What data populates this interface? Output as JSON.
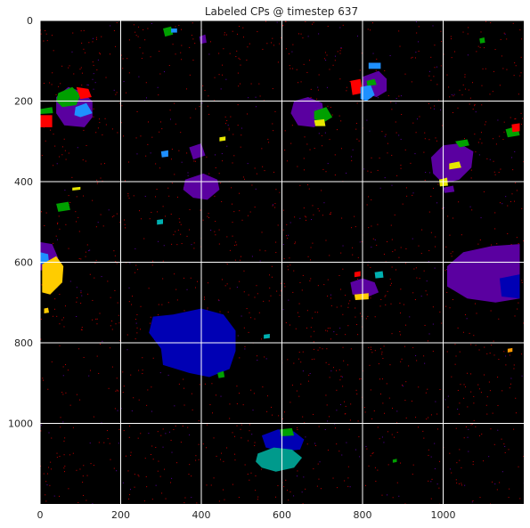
{
  "chart_data": {
    "type": "heatmap",
    "title": "Labeled CPs @ timestep 637",
    "xlabel": "",
    "ylabel": "",
    "xlim": [
      0,
      1200
    ],
    "ylim": [
      1200,
      0
    ],
    "y_inverted": true,
    "grid": true,
    "grid_color": "#ffffff",
    "background_color": "#000000",
    "x_ticks": [
      0,
      200,
      400,
      600,
      800,
      1000
    ],
    "y_ticks": [
      0,
      200,
      400,
      600,
      800,
      1000
    ],
    "regions": [
      {
        "color": "#0000b4",
        "points": [
          [
            330,
            730
          ],
          [
            400,
            715
          ],
          [
            455,
            730
          ],
          [
            485,
            770
          ],
          [
            485,
            820
          ],
          [
            470,
            865
          ],
          [
            420,
            885
          ],
          [
            370,
            875
          ],
          [
            305,
            855
          ],
          [
            300,
            815
          ],
          [
            270,
            775
          ],
          [
            280,
            735
          ]
        ]
      },
      {
        "color": "#5a00a0",
        "points": [
          [
            1010,
            610
          ],
          [
            1050,
            575
          ],
          [
            1120,
            560
          ],
          [
            1190,
            555
          ],
          [
            1190,
            690
          ],
          [
            1130,
            700
          ],
          [
            1060,
            690
          ],
          [
            1010,
            660
          ]
        ]
      },
      {
        "color": "#0000b4",
        "points": [
          [
            1140,
            640
          ],
          [
            1190,
            630
          ],
          [
            1190,
            690
          ],
          [
            1145,
            685
          ]
        ]
      },
      {
        "color": "#5a00a0",
        "points": [
          [
            40,
            190
          ],
          [
            70,
            165
          ],
          [
            100,
            175
          ],
          [
            130,
            200
          ],
          [
            130,
            240
          ],
          [
            110,
            265
          ],
          [
            60,
            260
          ],
          [
            40,
            230
          ]
        ]
      },
      {
        "color": "#00a000",
        "points": [
          [
            45,
            180
          ],
          [
            80,
            165
          ],
          [
            100,
            185
          ],
          [
            90,
            210
          ],
          [
            55,
            215
          ],
          [
            40,
            200
          ]
        ]
      },
      {
        "color": "#ff0000",
        "points": [
          [
            90,
            165
          ],
          [
            120,
            170
          ],
          [
            128,
            190
          ],
          [
            100,
            195
          ]
        ]
      },
      {
        "color": "#1e90ff",
        "points": [
          [
            88,
            215
          ],
          [
            115,
            205
          ],
          [
            130,
            230
          ],
          [
            100,
            240
          ],
          [
            85,
            235
          ]
        ]
      },
      {
        "color": "#5a00a0",
        "points": [
          [
            630,
            200
          ],
          [
            665,
            190
          ],
          [
            700,
            205
          ],
          [
            705,
            245
          ],
          [
            680,
            265
          ],
          [
            640,
            260
          ],
          [
            622,
            230
          ]
        ]
      },
      {
        "color": "#00a000",
        "points": [
          [
            680,
            225
          ],
          [
            710,
            215
          ],
          [
            725,
            240
          ],
          [
            700,
            255
          ],
          [
            680,
            245
          ]
        ]
      },
      {
        "color": "#e6e600",
        "points": [
          [
            680,
            248
          ],
          [
            705,
            245
          ],
          [
            708,
            262
          ],
          [
            683,
            262
          ]
        ]
      },
      {
        "color": "#5a00a0",
        "points": [
          [
            800,
            140
          ],
          [
            840,
            125
          ],
          [
            860,
            145
          ],
          [
            860,
            175
          ],
          [
            835,
            190
          ],
          [
            800,
            180
          ]
        ]
      },
      {
        "color": "#ff0000",
        "points": [
          [
            770,
            150
          ],
          [
            795,
            145
          ],
          [
            800,
            180
          ],
          [
            775,
            185
          ]
        ]
      },
      {
        "color": "#1e90ff",
        "points": [
          [
            795,
            165
          ],
          [
            820,
            160
          ],
          [
            830,
            185
          ],
          [
            810,
            200
          ],
          [
            795,
            195
          ]
        ]
      },
      {
        "color": "#00a000",
        "points": [
          [
            810,
            150
          ],
          [
            830,
            145
          ],
          [
            835,
            160
          ],
          [
            812,
            162
          ]
        ]
      },
      {
        "color": "#1e90ff",
        "points": [
          [
            815,
            105
          ],
          [
            845,
            105
          ],
          [
            845,
            120
          ],
          [
            815,
            120
          ]
        ]
      },
      {
        "color": "#5a00a0",
        "points": [
          [
            970,
            340
          ],
          [
            1000,
            310
          ],
          [
            1040,
            305
          ],
          [
            1075,
            325
          ],
          [
            1070,
            365
          ],
          [
            1040,
            395
          ],
          [
            1000,
            405
          ],
          [
            975,
            380
          ]
        ]
      },
      {
        "color": "#00a000",
        "points": [
          [
            1030,
            300
          ],
          [
            1060,
            295
          ],
          [
            1065,
            310
          ],
          [
            1040,
            315
          ]
        ]
      },
      {
        "color": "#e6e600",
        "points": [
          [
            1015,
            355
          ],
          [
            1040,
            350
          ],
          [
            1045,
            365
          ],
          [
            1015,
            370
          ]
        ]
      },
      {
        "color": "#e6e600",
        "points": [
          [
            990,
            395
          ],
          [
            1010,
            390
          ],
          [
            1012,
            410
          ],
          [
            992,
            412
          ]
        ]
      },
      {
        "color": "#5a00a0",
        "points": [
          [
            1000,
            415
          ],
          [
            1025,
            410
          ],
          [
            1028,
            425
          ],
          [
            1003,
            428
          ]
        ]
      },
      {
        "color": "#5a00a0",
        "points": [
          [
            0,
            550
          ],
          [
            30,
            555
          ],
          [
            45,
            590
          ],
          [
            20,
            620
          ],
          [
            0,
            620
          ]
        ]
      },
      {
        "color": "#1e90ff",
        "points": [
          [
            0,
            575
          ],
          [
            20,
            580
          ],
          [
            22,
            600
          ],
          [
            0,
            605
          ]
        ]
      },
      {
        "color": "#ffcc00",
        "points": [
          [
            5,
            605
          ],
          [
            40,
            585
          ],
          [
            58,
            610
          ],
          [
            55,
            650
          ],
          [
            25,
            680
          ],
          [
            5,
            675
          ]
        ]
      },
      {
        "color": "#ff0000",
        "points": [
          [
            0,
            235
          ],
          [
            30,
            235
          ],
          [
            30,
            265
          ],
          [
            0,
            265
          ]
        ]
      },
      {
        "color": "#00a000",
        "points": [
          [
            0,
            220
          ],
          [
            30,
            215
          ],
          [
            32,
            230
          ],
          [
            0,
            232
          ]
        ]
      },
      {
        "color": "#5a00a0",
        "points": [
          [
            360,
            395
          ],
          [
            405,
            380
          ],
          [
            440,
            395
          ],
          [
            445,
            420
          ],
          [
            415,
            445
          ],
          [
            380,
            440
          ],
          [
            355,
            420
          ]
        ]
      },
      {
        "color": "#5a00a0",
        "points": [
          [
            370,
            315
          ],
          [
            400,
            305
          ],
          [
            410,
            335
          ],
          [
            380,
            345
          ]
        ]
      },
      {
        "color": "#1e90ff",
        "points": [
          [
            300,
            325
          ],
          [
            318,
            322
          ],
          [
            318,
            338
          ],
          [
            302,
            340
          ]
        ]
      },
      {
        "color": "#5a00a0",
        "points": [
          [
            770,
            650
          ],
          [
            800,
            640
          ],
          [
            830,
            650
          ],
          [
            840,
            675
          ],
          [
            815,
            685
          ],
          [
            775,
            680
          ]
        ]
      },
      {
        "color": "#ffcc00",
        "points": [
          [
            780,
            680
          ],
          [
            815,
            677
          ],
          [
            815,
            692
          ],
          [
            782,
            694
          ]
        ]
      },
      {
        "color": "#ff0000",
        "points": [
          [
            780,
            625
          ],
          [
            795,
            622
          ],
          [
            795,
            635
          ],
          [
            780,
            637
          ]
        ]
      },
      {
        "color": "#00b0b0",
        "points": [
          [
            830,
            625
          ],
          [
            850,
            622
          ],
          [
            852,
            638
          ],
          [
            832,
            640
          ]
        ]
      },
      {
        "color": "#0000b4",
        "points": [
          [
            550,
            1030
          ],
          [
            590,
            1015
          ],
          [
            630,
            1020
          ],
          [
            655,
            1040
          ],
          [
            645,
            1065
          ],
          [
            600,
            1070
          ],
          [
            560,
            1060
          ]
        ]
      },
      {
        "color": "#009a8c",
        "points": [
          [
            540,
            1075
          ],
          [
            580,
            1060
          ],
          [
            625,
            1065
          ],
          [
            650,
            1085
          ],
          [
            630,
            1110
          ],
          [
            585,
            1120
          ],
          [
            550,
            1110
          ],
          [
            535,
            1095
          ]
        ]
      },
      {
        "color": "#00a000",
        "points": [
          [
            595,
            1015
          ],
          [
            625,
            1012
          ],
          [
            630,
            1030
          ],
          [
            598,
            1032
          ]
        ]
      },
      {
        "color": "#00a000",
        "points": [
          [
            40,
            455
          ],
          [
            70,
            450
          ],
          [
            75,
            470
          ],
          [
            45,
            475
          ]
        ]
      },
      {
        "color": "#00a000",
        "points": [
          [
            305,
            20
          ],
          [
            325,
            15
          ],
          [
            330,
            35
          ],
          [
            310,
            40
          ]
        ]
      },
      {
        "color": "#1e90ff",
        "points": [
          [
            325,
            20
          ],
          [
            340,
            20
          ],
          [
            340,
            30
          ],
          [
            325,
            30
          ]
        ]
      },
      {
        "color": "#5a00a0",
        "points": [
          [
            395,
            40
          ],
          [
            410,
            35
          ],
          [
            413,
            55
          ],
          [
            398,
            58
          ]
        ]
      },
      {
        "color": "#00a000",
        "points": [
          [
            1090,
            45
          ],
          [
            1102,
            42
          ],
          [
            1104,
            55
          ],
          [
            1092,
            57
          ]
        ]
      },
      {
        "color": "#ffcc00",
        "points": [
          [
            10,
            715
          ],
          [
            20,
            713
          ],
          [
            22,
            725
          ],
          [
            10,
            727
          ]
        ]
      },
      {
        "color": "#e6e600",
        "points": [
          [
            80,
            415
          ],
          [
            100,
            413
          ],
          [
            100,
            420
          ],
          [
            80,
            422
          ]
        ]
      },
      {
        "color": "#00b0b0",
        "points": [
          [
            290,
            495
          ],
          [
            305,
            493
          ],
          [
            305,
            505
          ],
          [
            290,
            507
          ]
        ]
      },
      {
        "color": "#00a000",
        "points": [
          [
            875,
            1090
          ],
          [
            885,
            1088
          ],
          [
            885,
            1096
          ],
          [
            875,
            1098
          ]
        ]
      },
      {
        "color": "#00a000",
        "points": [
          [
            440,
            875
          ],
          [
            455,
            870
          ],
          [
            458,
            885
          ],
          [
            443,
            888
          ]
        ]
      },
      {
        "color": "#00a000",
        "points": [
          [
            1155,
            270
          ],
          [
            1185,
            262
          ],
          [
            1190,
            285
          ],
          [
            1160,
            290
          ]
        ]
      },
      {
        "color": "#ff0000",
        "points": [
          [
            1170,
            258
          ],
          [
            1190,
            255
          ],
          [
            1190,
            275
          ],
          [
            1172,
            277
          ]
        ]
      },
      {
        "color": "#e6e600",
        "points": [
          [
            445,
            290
          ],
          [
            460,
            288
          ],
          [
            460,
            298
          ],
          [
            445,
            300
          ]
        ]
      },
      {
        "color": "#00b0b0",
        "points": [
          [
            555,
            780
          ],
          [
            570,
            778
          ],
          [
            570,
            788
          ],
          [
            555,
            790
          ]
        ]
      },
      {
        "color": "#ff9900",
        "points": [
          [
            1160,
            815
          ],
          [
            1172,
            813
          ],
          [
            1172,
            822
          ],
          [
            1160,
            824
          ]
        ]
      }
    ]
  }
}
